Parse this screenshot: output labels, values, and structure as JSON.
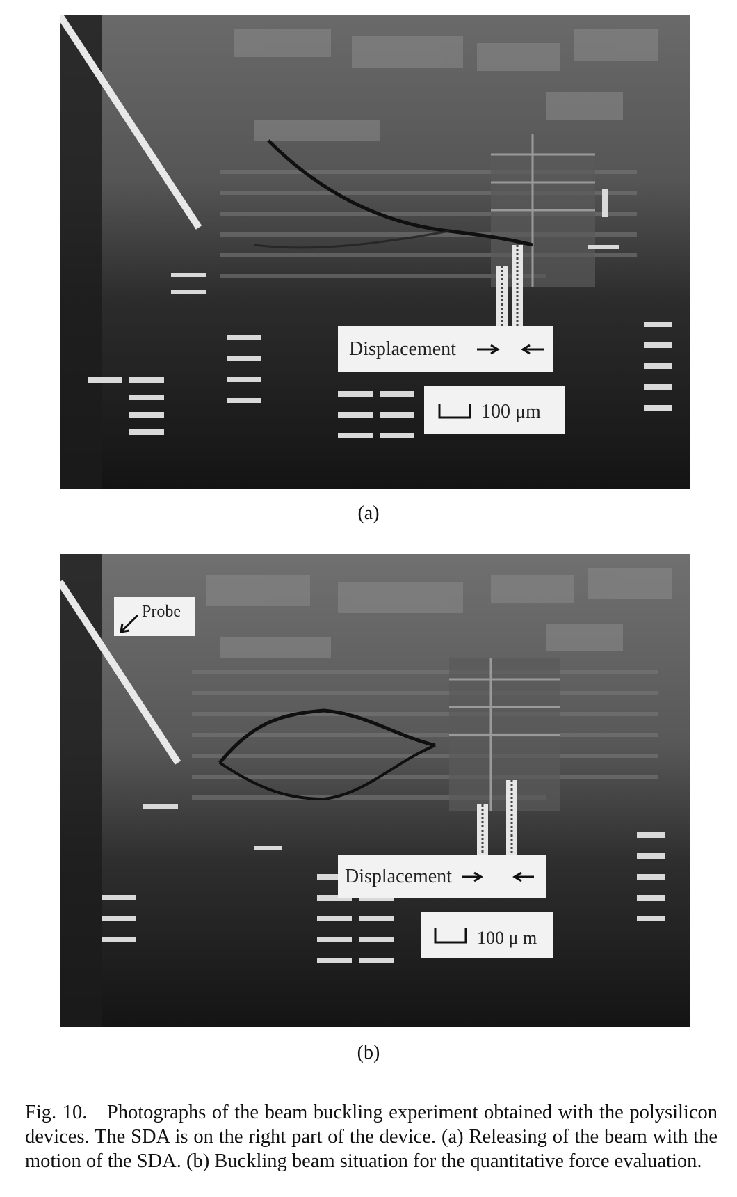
{
  "figure": {
    "panel_a": {
      "sublabel": "(a)",
      "displacement_label": "Displacement",
      "scale_label": "100 μm"
    },
    "panel_b": {
      "sublabel": "(b)",
      "probe_label": "Probe",
      "displacement_label": "Displacement",
      "scale_label": "100 μ m"
    },
    "caption": "Fig. 10. Photographs of the beam buckling experiment obtained with the polysilicon devices. The SDA is on the right part of the device. (a) Releasing of the beam with the motion of the SDA. (b) Buckling beam situation for the quantitative force evaluation."
  }
}
